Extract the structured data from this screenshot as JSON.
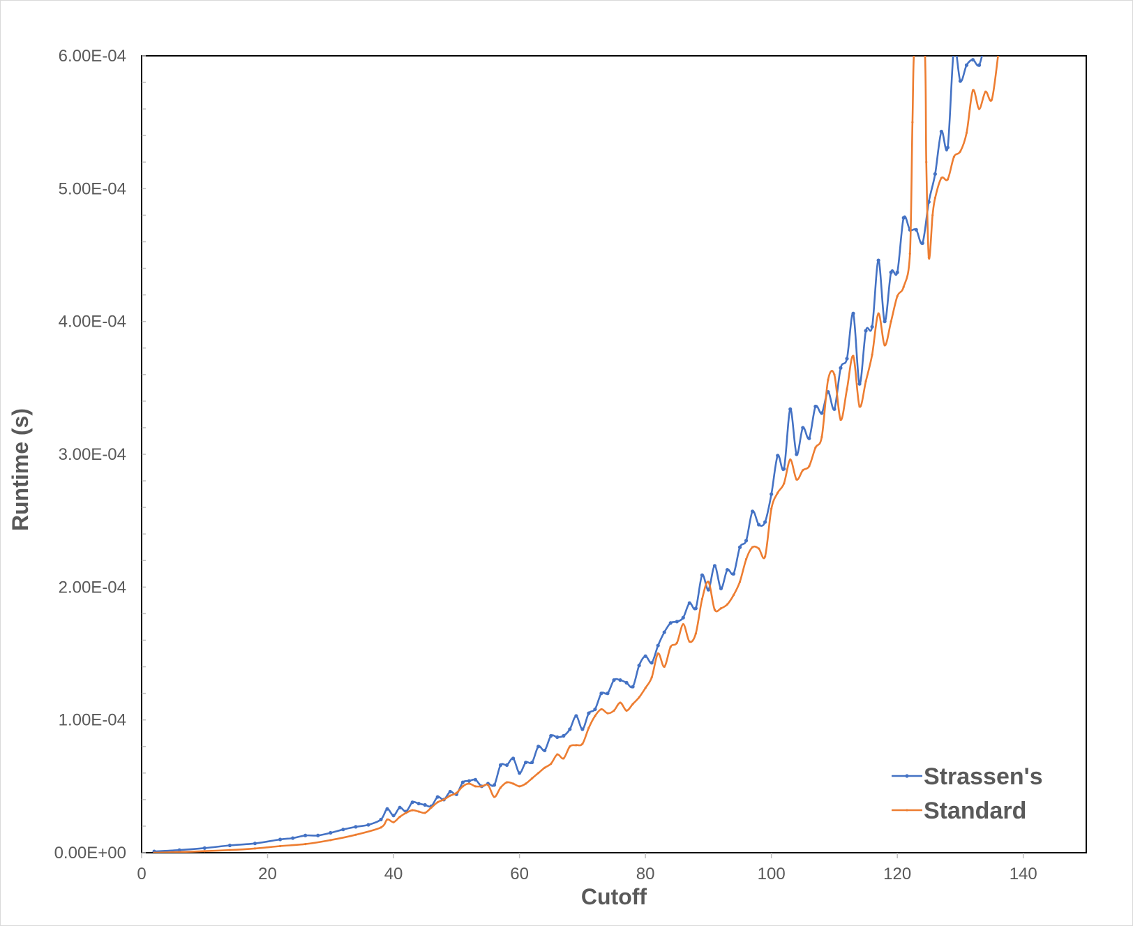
{
  "chart_data": {
    "type": "line",
    "title": "",
    "xlabel": "Cutoff",
    "ylabel": "Runtime (s)",
    "xlim": [
      0,
      150
    ],
    "ylim": [
      0,
      0.0006
    ],
    "xticks": [
      0,
      20,
      40,
      60,
      80,
      100,
      120,
      140
    ],
    "xtick_labels": [
      "0",
      "20",
      "40",
      "60",
      "80",
      "100",
      "120",
      "140"
    ],
    "yticks": [
      0,
      0.0001,
      0.0002,
      0.0003,
      0.0004,
      0.0005,
      0.0006
    ],
    "ytick_labels": [
      "0.00E+00",
      "1.00E-04",
      "2.00E-04",
      "3.00E-04",
      "4.00E-04",
      "5.00E-04",
      "6.00E-04"
    ],
    "grid": false,
    "legend_position": "bottom-right",
    "series": [
      {
        "name": "Strassen's",
        "color": "#4472c4",
        "x": [
          2,
          6,
          10,
          14,
          18,
          22,
          24,
          26,
          28,
          30,
          32,
          34,
          36,
          38,
          39,
          40,
          41,
          42,
          43,
          44,
          45,
          46,
          47,
          48,
          49,
          50,
          51,
          52,
          53,
          54,
          55,
          56,
          57,
          58,
          59,
          60,
          61,
          62,
          63,
          64,
          65,
          66,
          67,
          68,
          69,
          70,
          71,
          72,
          73,
          74,
          75,
          76,
          77,
          78,
          79,
          80,
          81,
          82,
          83,
          84,
          85,
          86,
          87,
          88,
          89,
          90,
          91,
          92,
          93,
          94,
          95,
          96,
          97,
          98,
          99,
          100,
          101,
          102,
          103,
          104,
          105,
          106,
          107,
          108,
          109,
          110,
          111,
          112,
          113,
          114,
          115,
          116,
          117,
          118,
          119,
          120,
          121,
          122,
          123,
          124,
          125,
          126,
          127,
          128,
          129,
          130,
          131,
          132,
          133,
          134
        ],
        "y": [
          1e-06,
          2e-06,
          3.5e-06,
          5.5e-06,
          7e-06,
          1e-05,
          1.1e-05,
          1.3e-05,
          1.3e-05,
          1.5e-05,
          1.75e-05,
          1.95e-05,
          2.1e-05,
          2.5e-05,
          3.3e-05,
          2.8e-05,
          3.4e-05,
          3.1e-05,
          3.8e-05,
          3.7e-05,
          3.6e-05,
          3.5e-05,
          4.2e-05,
          4e-05,
          4.6e-05,
          4.4e-05,
          5.3e-05,
          5.4e-05,
          5.5e-05,
          5e-05,
          5.2e-05,
          5.1e-05,
          6.6e-05,
          6.6e-05,
          7.1e-05,
          6e-05,
          6.8e-05,
          6.8e-05,
          8e-05,
          7.7e-05,
          8.8e-05,
          8.7e-05,
          8.8e-05,
          9.3e-05,
          0.000103,
          9.3e-05,
          0.000105,
          0.000108,
          0.00012,
          0.00012,
          0.00013,
          0.00013,
          0.000128,
          0.000125,
          0.000141,
          0.000148,
          0.000143,
          0.000156,
          0.000166,
          0.000173,
          0.000174,
          0.000177,
          0.000188,
          0.000184,
          0.000209,
          0.000198,
          0.000216,
          0.000199,
          0.000213,
          0.00021,
          0.00023,
          0.000235,
          0.000257,
          0.000247,
          0.000249,
          0.00027,
          0.000299,
          0.000289,
          0.000334,
          0.0003,
          0.00032,
          0.000312,
          0.000336,
          0.000331,
          0.000347,
          0.000334,
          0.000365,
          0.000372,
          0.000406,
          0.000353,
          0.000393,
          0.000396,
          0.000446,
          0.0004,
          0.000437,
          0.000437,
          0.000478,
          0.000469,
          0.000469,
          0.000459,
          0.00049,
          0.000511,
          0.000543,
          0.000531,
          0.000606,
          0.000581,
          0.000593,
          0.000597,
          0.000593,
          0.000612
        ]
      },
      {
        "name": "Standard",
        "color": "#ed7d31",
        "x": [
          2,
          6,
          10,
          14,
          18,
          22,
          26,
          30,
          34,
          38,
          39,
          40,
          41,
          42,
          43,
          44,
          45,
          46,
          47,
          48,
          49,
          50,
          51,
          52,
          53,
          54,
          55,
          56,
          57,
          58,
          59,
          60,
          61,
          62,
          63,
          64,
          65,
          66,
          67,
          68,
          69,
          70,
          71,
          72,
          73,
          74,
          75,
          76,
          77,
          78,
          79,
          80,
          81,
          82,
          83,
          84,
          85,
          86,
          87,
          88,
          89,
          90,
          91,
          92,
          93,
          94,
          95,
          96,
          97,
          98,
          99,
          100,
          101,
          102,
          103,
          104,
          105,
          106,
          107,
          108,
          109,
          110,
          111,
          112,
          113,
          114,
          115,
          116,
          117,
          118,
          119,
          120,
          121,
          122,
          122.4,
          122.8,
          124.3,
          124.6,
          125,
          125.6,
          126,
          127,
          128,
          129,
          130,
          131,
          132,
          133,
          134,
          135,
          136
        ],
        "y": [
          0,
          5e-07,
          1.2e-06,
          2e-06,
          3.2e-06,
          5e-06,
          6.5e-06,
          9.5e-06,
          1.35e-05,
          1.9e-05,
          2.5e-05,
          2.3e-05,
          2.7e-05,
          3e-05,
          3.2e-05,
          3.1e-05,
          3e-05,
          3.4e-05,
          3.8e-05,
          4e-05,
          4.3e-05,
          4.5e-05,
          5e-05,
          5.2e-05,
          5e-05,
          5e-05,
          5.1e-05,
          4.2e-05,
          4.9e-05,
          5.3e-05,
          5.2e-05,
          5e-05,
          5.2e-05,
          5.6e-05,
          6e-05,
          6.4e-05,
          6.7e-05,
          7.4e-05,
          7.1e-05,
          8e-05,
          8.1e-05,
          8.2e-05,
          9.4e-05,
          0.000103,
          0.000108,
          0.000105,
          0.000107,
          0.000113,
          0.000107,
          0.000112,
          0.000117,
          0.000124,
          0.000132,
          0.00015,
          0.00014,
          0.000155,
          0.000158,
          0.000172,
          0.000159,
          0.000165,
          0.000191,
          0.000204,
          0.000183,
          0.000184,
          0.000187,
          0.000194,
          0.000204,
          0.000221,
          0.00023,
          0.000229,
          0.000223,
          0.000259,
          0.000271,
          0.000278,
          0.000296,
          0.000281,
          0.000288,
          0.000291,
          0.000305,
          0.000313,
          0.000356,
          0.00036,
          0.000326,
          0.000349,
          0.000374,
          0.000336,
          0.000355,
          0.000375,
          0.000406,
          0.000382,
          0.0004,
          0.000419,
          0.000426,
          0.000451,
          0.00055,
          0.00061,
          0.00061,
          0.00052,
          0.000448,
          0.00048,
          0.000493,
          0.000508,
          0.000507,
          0.000524,
          0.000528,
          0.000542,
          0.000574,
          0.00056,
          0.000573,
          0.000567,
          0.0006
        ]
      }
    ]
  }
}
